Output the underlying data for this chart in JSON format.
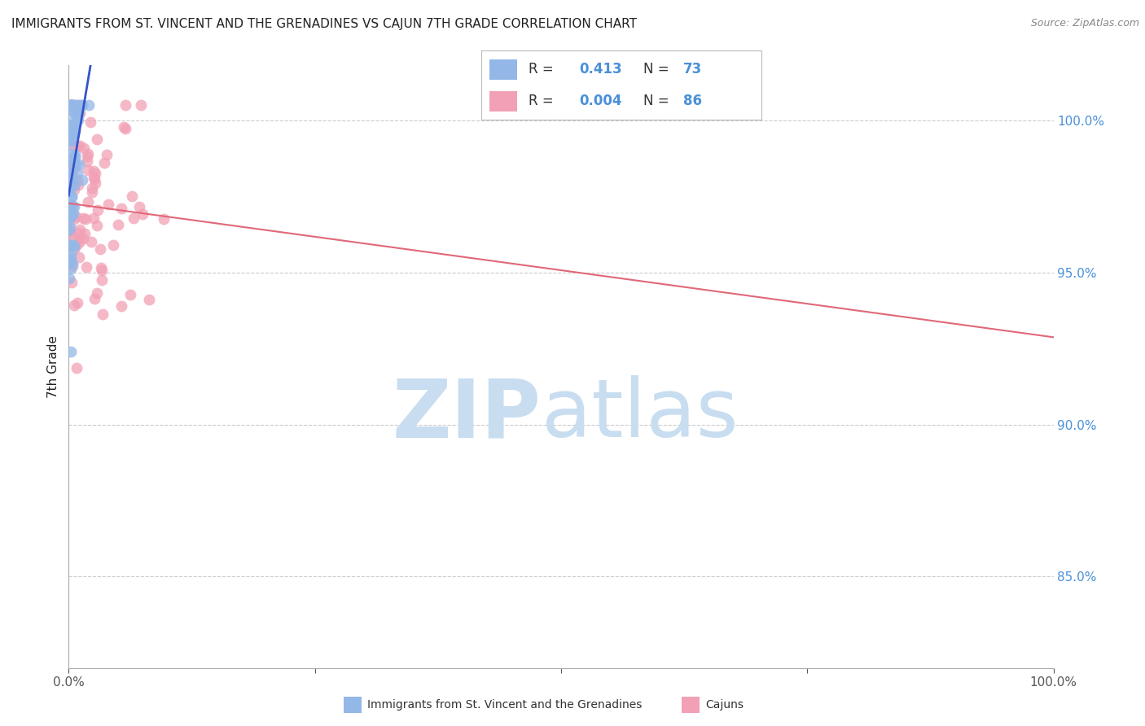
{
  "title": "IMMIGRANTS FROM ST. VINCENT AND THE GRENADINES VS CAJUN 7TH GRADE CORRELATION CHART",
  "source": "Source: ZipAtlas.com",
  "ylabel": "7th Grade",
  "ytick_values": [
    0.85,
    0.9,
    0.95,
    1.0
  ],
  "ytick_labels": [
    "85.0%",
    "90.0%",
    "95.0%",
    "100.0%"
  ],
  "xlim": [
    0.0,
    1.0
  ],
  "ylim": [
    0.82,
    1.018
  ],
  "legend_blue_R": "0.413",
  "legend_blue_N": "73",
  "legend_pink_R": "0.004",
  "legend_pink_N": "86",
  "blue_color": "#93b8e8",
  "pink_color": "#f2a0b5",
  "trend_blue_color": "#3355cc",
  "trend_pink_color": "#e06878",
  "watermark_zip": "ZIP",
  "watermark_atlas": "atlas",
  "watermark_color_zip": "#c8ddf0",
  "watermark_color_atlas": "#c8ddf0",
  "legend_label_blue": "Immigrants from St. Vincent and the Grenadines",
  "legend_label_pink": "Cajuns",
  "grid_color": "#cccccc",
  "title_color": "#222222",
  "source_color": "#888888",
  "tick_color_y": "#4a90d9",
  "tick_color_x": "#555555"
}
